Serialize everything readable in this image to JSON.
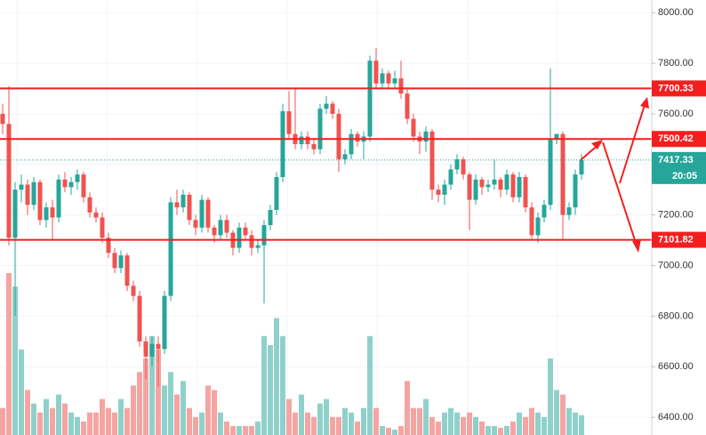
{
  "chart_data": {
    "type": "candlestick",
    "ylim": [
      6330,
      8050
    ],
    "yticks": [
      {
        "value": 6400,
        "label": "6400.00"
      },
      {
        "value": 6600,
        "label": "6600.00"
      },
      {
        "value": 6800,
        "label": "6800.00"
      },
      {
        "value": 7000,
        "label": "7000.00"
      },
      {
        "value": 7200,
        "label": "7200.00"
      },
      {
        "value": 7400,
        "label": "7400.00"
      },
      {
        "value": 7600,
        "label": "7600.00"
      },
      {
        "value": 7800,
        "label": "7800.00"
      },
      {
        "value": 8000,
        "label": "8000.00"
      }
    ],
    "grid": true,
    "up_color": "#26a69a",
    "down_color": "#ef5350",
    "volume_up_color": "#8fd1ca",
    "volume_down_color": "#f5a4a2",
    "levels": [
      7700.33,
      7500.42,
      7101.82
    ],
    "level_color": "#f21f1f",
    "current_price": 7417.33,
    "countdown": "20:05",
    "candles": [
      {
        "o": 7600,
        "h": 7640,
        "l": 7520,
        "c": 7560,
        "v": 30
      },
      {
        "o": 7560,
        "h": 7710,
        "l": 7080,
        "c": 7110,
        "v": 180
      },
      {
        "o": 7110,
        "h": 7330,
        "l": 6800,
        "c": 7300,
        "v": 165
      },
      {
        "o": 7300,
        "h": 7360,
        "l": 7250,
        "c": 7320,
        "v": 95
      },
      {
        "o": 7320,
        "h": 7340,
        "l": 7200,
        "c": 7240,
        "v": 50
      },
      {
        "o": 7240,
        "h": 7350,
        "l": 7220,
        "c": 7330,
        "v": 35
      },
      {
        "o": 7330,
        "h": 7340,
        "l": 7160,
        "c": 7180,
        "v": 25
      },
      {
        "o": 7180,
        "h": 7250,
        "l": 7150,
        "c": 7230,
        "v": 40
      },
      {
        "o": 7230,
        "h": 7260,
        "l": 7100,
        "c": 7190,
        "v": 30
      },
      {
        "o": 7190,
        "h": 7360,
        "l": 7170,
        "c": 7340,
        "v": 45
      },
      {
        "o": 7340,
        "h": 7370,
        "l": 7290,
        "c": 7310,
        "v": 35
      },
      {
        "o": 7310,
        "h": 7350,
        "l": 7280,
        "c": 7330,
        "v": 25
      },
      {
        "o": 7330,
        "h": 7380,
        "l": 7300,
        "c": 7360,
        "v": 20
      },
      {
        "o": 7360,
        "h": 7370,
        "l": 7250,
        "c": 7270,
        "v": 15
      },
      {
        "o": 7270,
        "h": 7290,
        "l": 7190,
        "c": 7210,
        "v": 25
      },
      {
        "o": 7210,
        "h": 7230,
        "l": 7170,
        "c": 7190,
        "v": 25
      },
      {
        "o": 7190,
        "h": 7210,
        "l": 7090,
        "c": 7110,
        "v": 40
      },
      {
        "o": 7110,
        "h": 7130,
        "l": 7030,
        "c": 7050,
        "v": 30
      },
      {
        "o": 7050,
        "h": 7070,
        "l": 6970,
        "c": 6990,
        "v": 25
      },
      {
        "o": 6990,
        "h": 7060,
        "l": 6970,
        "c": 7040,
        "v": 40
      },
      {
        "o": 7040,
        "h": 7050,
        "l": 6900,
        "c": 6920,
        "v": 30
      },
      {
        "o": 6920,
        "h": 6940,
        "l": 6860,
        "c": 6880,
        "v": 55
      },
      {
        "o": 6880,
        "h": 6900,
        "l": 6680,
        "c": 6700,
        "v": 70
      },
      {
        "o": 6700,
        "h": 6720,
        "l": 6550,
        "c": 6640,
        "v": 85
      },
      {
        "o": 6640,
        "h": 6720,
        "l": 6600,
        "c": 6690,
        "v": 110
      },
      {
        "o": 6690,
        "h": 6720,
        "l": 6520,
        "c": 6670,
        "v": 95
      },
      {
        "o": 6670,
        "h": 6900,
        "l": 6650,
        "c": 6880,
        "v": 55
      },
      {
        "o": 6880,
        "h": 7270,
        "l": 6860,
        "c": 7250,
        "v": 70
      },
      {
        "o": 7250,
        "h": 7300,
        "l": 7200,
        "c": 7230,
        "v": 45
      },
      {
        "o": 7230,
        "h": 7300,
        "l": 7210,
        "c": 7280,
        "v": 60
      },
      {
        "o": 7280,
        "h": 7290,
        "l": 7160,
        "c": 7180,
        "v": 30
      },
      {
        "o": 7180,
        "h": 7200,
        "l": 7120,
        "c": 7150,
        "v": 20
      },
      {
        "o": 7150,
        "h": 7280,
        "l": 7130,
        "c": 7260,
        "v": 25
      },
      {
        "o": 7260,
        "h": 7270,
        "l": 7130,
        "c": 7150,
        "v": 55
      },
      {
        "o": 7150,
        "h": 7160,
        "l": 7090,
        "c": 7120,
        "v": 50
      },
      {
        "o": 7120,
        "h": 7200,
        "l": 7100,
        "c": 7180,
        "v": 25
      },
      {
        "o": 7180,
        "h": 7200,
        "l": 7110,
        "c": 7130,
        "v": 15
      },
      {
        "o": 7130,
        "h": 7140,
        "l": 7040,
        "c": 7070,
        "v": 10
      },
      {
        "o": 7070,
        "h": 7170,
        "l": 7050,
        "c": 7150,
        "v": 10
      },
      {
        "o": 7150,
        "h": 7170,
        "l": 7100,
        "c": 7120,
        "v": 10
      },
      {
        "o": 7120,
        "h": 7140,
        "l": 7040,
        "c": 7070,
        "v": 10
      },
      {
        "o": 7070,
        "h": 7100,
        "l": 7050,
        "c": 7080,
        "v": 15
      },
      {
        "o": 7080,
        "h": 7180,
        "l": 6850,
        "c": 7160,
        "v": 110
      },
      {
        "o": 7160,
        "h": 7240,
        "l": 7140,
        "c": 7220,
        "v": 100
      },
      {
        "o": 7220,
        "h": 7370,
        "l": 7200,
        "c": 7350,
        "v": 130
      },
      {
        "o": 7350,
        "h": 7640,
        "l": 7330,
        "c": 7610,
        "v": 110
      },
      {
        "o": 7610,
        "h": 7690,
        "l": 7500,
        "c": 7520,
        "v": 40
      },
      {
        "o": 7520,
        "h": 7700,
        "l": 7460,
        "c": 7480,
        "v": 25
      },
      {
        "o": 7480,
        "h": 7530,
        "l": 7460,
        "c": 7510,
        "v": 45
      },
      {
        "o": 7510,
        "h": 7530,
        "l": 7460,
        "c": 7480,
        "v": 25
      },
      {
        "o": 7480,
        "h": 7500,
        "l": 7440,
        "c": 7460,
        "v": 20
      },
      {
        "o": 7460,
        "h": 7640,
        "l": 7440,
        "c": 7620,
        "v": 35
      },
      {
        "o": 7620,
        "h": 7670,
        "l": 7600,
        "c": 7640,
        "v": 40
      },
      {
        "o": 7640,
        "h": 7650,
        "l": 7580,
        "c": 7600,
        "v": 20
      },
      {
        "o": 7600,
        "h": 7620,
        "l": 7370,
        "c": 7420,
        "v": 20
      },
      {
        "o": 7420,
        "h": 7460,
        "l": 7400,
        "c": 7440,
        "v": 30
      },
      {
        "o": 7440,
        "h": 7540,
        "l": 7420,
        "c": 7520,
        "v": 25
      },
      {
        "o": 7520,
        "h": 7530,
        "l": 7470,
        "c": 7490,
        "v": 15
      },
      {
        "o": 7490,
        "h": 7530,
        "l": 7420,
        "c": 7510,
        "v": 30
      },
      {
        "o": 7510,
        "h": 7830,
        "l": 7490,
        "c": 7810,
        "v": 110
      },
      {
        "o": 7810,
        "h": 7860,
        "l": 7700,
        "c": 7720,
        "v": 30
      },
      {
        "o": 7720,
        "h": 7780,
        "l": 7700,
        "c": 7760,
        "v": 10
      },
      {
        "o": 7760,
        "h": 7770,
        "l": 7700,
        "c": 7720,
        "v": 8
      },
      {
        "o": 7720,
        "h": 7770,
        "l": 7700,
        "c": 7740,
        "v": 6
      },
      {
        "o": 7740,
        "h": 7810,
        "l": 7660,
        "c": 7680,
        "v": 10
      },
      {
        "o": 7680,
        "h": 7700,
        "l": 7560,
        "c": 7580,
        "v": 60
      },
      {
        "o": 7580,
        "h": 7600,
        "l": 7490,
        "c": 7510,
        "v": 30
      },
      {
        "o": 7510,
        "h": 7530,
        "l": 7440,
        "c": 7490,
        "v": 30
      },
      {
        "o": 7490,
        "h": 7550,
        "l": 7450,
        "c": 7530,
        "v": 40
      },
      {
        "o": 7530,
        "h": 7540,
        "l": 7260,
        "c": 7300,
        "v": 20
      },
      {
        "o": 7300,
        "h": 7320,
        "l": 7250,
        "c": 7280,
        "v": 15
      },
      {
        "o": 7280,
        "h": 7340,
        "l": 7240,
        "c": 7320,
        "v": 25
      },
      {
        "o": 7320,
        "h": 7400,
        "l": 7300,
        "c": 7380,
        "v": 30
      },
      {
        "o": 7380,
        "h": 7440,
        "l": 7360,
        "c": 7420,
        "v": 25
      },
      {
        "o": 7420,
        "h": 7430,
        "l": 7340,
        "c": 7360,
        "v": 20
      },
      {
        "o": 7360,
        "h": 7370,
        "l": 7140,
        "c": 7260,
        "v": 25
      },
      {
        "o": 7260,
        "h": 7360,
        "l": 7240,
        "c": 7340,
        "v": 20
      },
      {
        "o": 7340,
        "h": 7350,
        "l": 7280,
        "c": 7310,
        "v": 15
      },
      {
        "o": 7310,
        "h": 7340,
        "l": 7290,
        "c": 7320,
        "v": 10
      },
      {
        "o": 7320,
        "h": 7420,
        "l": 7300,
        "c": 7340,
        "v": 10
      },
      {
        "o": 7340,
        "h": 7350,
        "l": 7270,
        "c": 7300,
        "v": 8
      },
      {
        "o": 7300,
        "h": 7380,
        "l": 7280,
        "c": 7360,
        "v": 10
      },
      {
        "o": 7360,
        "h": 7370,
        "l": 7250,
        "c": 7270,
        "v": 15
      },
      {
        "o": 7270,
        "h": 7370,
        "l": 7250,
        "c": 7350,
        "v": 25
      },
      {
        "o": 7350,
        "h": 7360,
        "l": 7210,
        "c": 7230,
        "v": 20
      },
      {
        "o": 7230,
        "h": 7250,
        "l": 7100,
        "c": 7120,
        "v": 30
      },
      {
        "o": 7120,
        "h": 7210,
        "l": 7090,
        "c": 7190,
        "v": 25
      },
      {
        "o": 7190,
        "h": 7260,
        "l": 7170,
        "c": 7240,
        "v": 20
      },
      {
        "o": 7240,
        "h": 7780,
        "l": 7220,
        "c": 7500,
        "v": 85
      },
      {
        "o": 7500,
        "h": 7520,
        "l": 7480,
        "c": 7520,
        "v": 50
      },
      {
        "o": 7520,
        "h": 7530,
        "l": 7100,
        "c": 7200,
        "v": 45
      },
      {
        "o": 7200,
        "h": 7250,
        "l": 7180,
        "c": 7230,
        "v": 30
      },
      {
        "o": 7230,
        "h": 7380,
        "l": 7200,
        "c": 7360,
        "v": 25
      },
      {
        "o": 7360,
        "h": 7440,
        "l": 7340,
        "c": 7417.33,
        "v": 22
      }
    ]
  }
}
